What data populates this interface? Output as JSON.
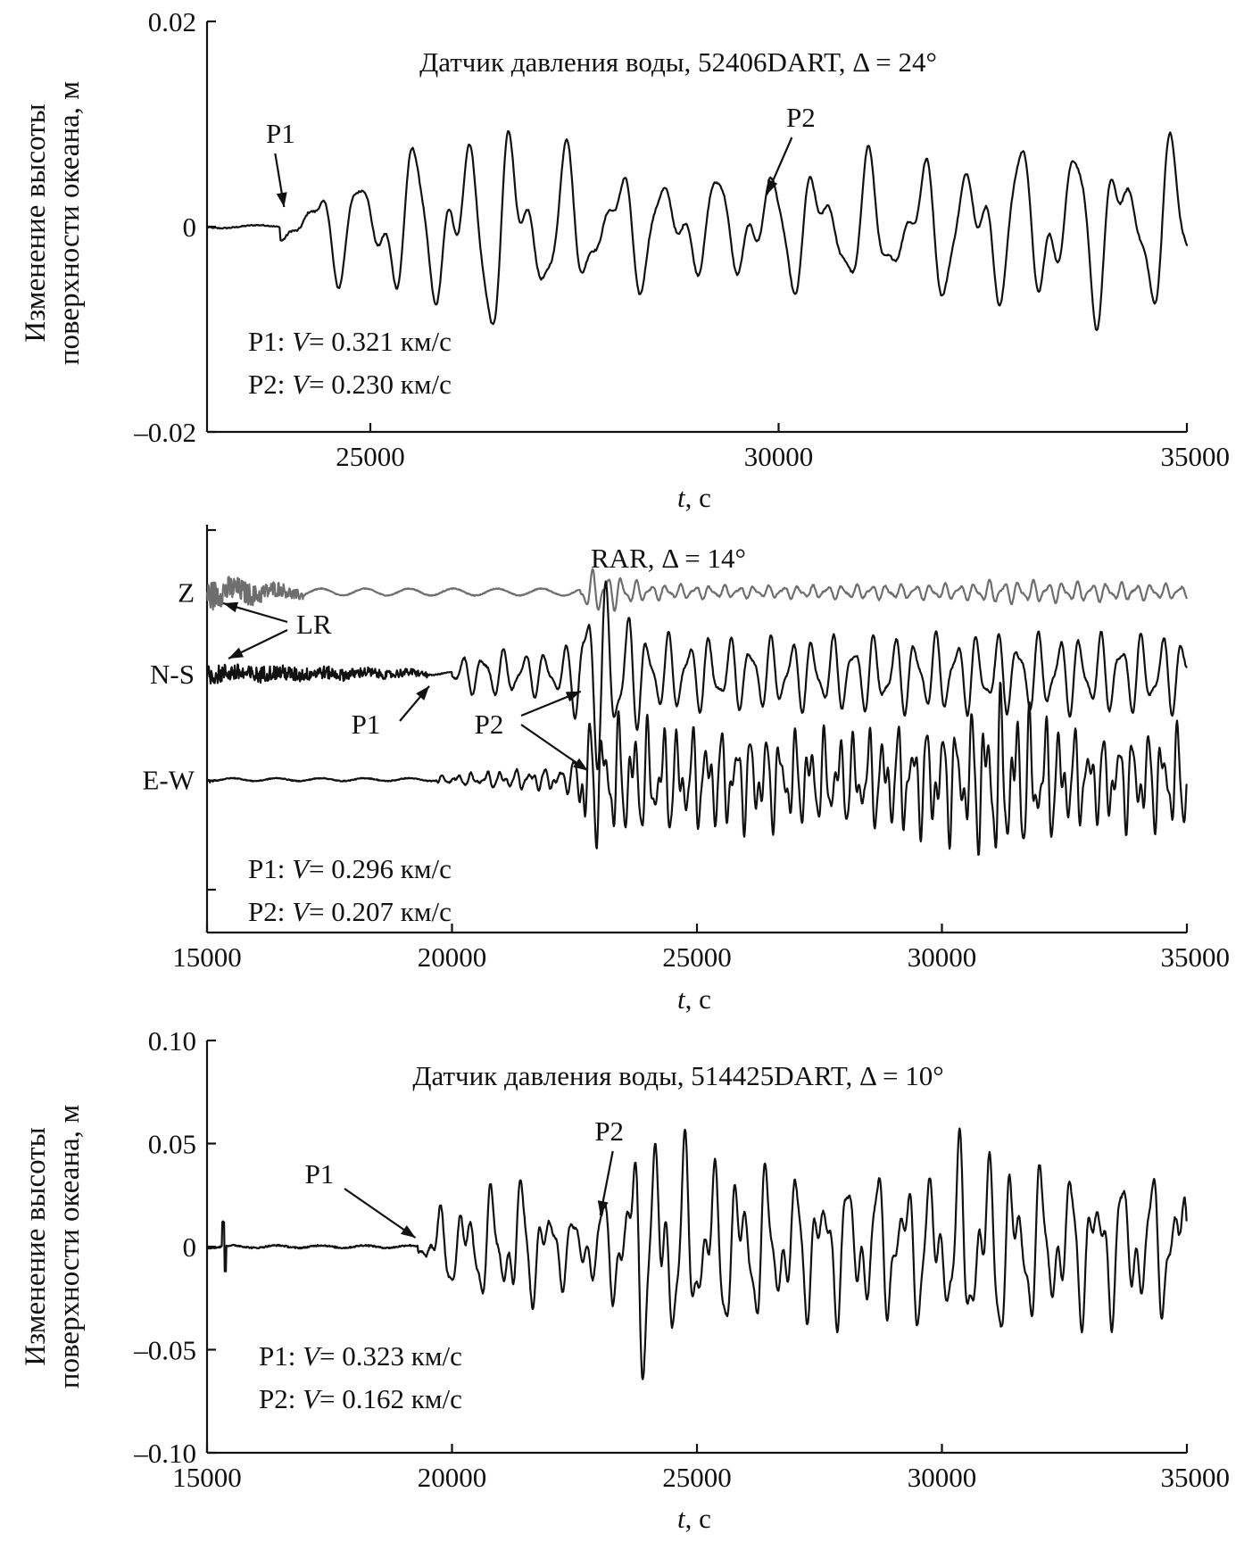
{
  "chart_data": [
    {
      "type": "line",
      "panel": "top",
      "title": "Датчик давления воды, 52406DART, Δ = 24°",
      "ylabel_line1": "Изменение высоты",
      "ylabel_line2": "поверхности  океана, м",
      "xlabel_italic": "t",
      "xlabel_rest": ", с",
      "xlim": [
        23000,
        35000
      ],
      "ylim": [
        -0.02,
        0.02
      ],
      "x_ticks": [
        25000,
        30000,
        35000
      ],
      "x_tick_labels": [
        "25000",
        "30000",
        "35000"
      ],
      "y_ticks": [
        0.02,
        0,
        -0.02
      ],
      "y_tick_labels": [
        "0.02",
        "0",
        "–0.02"
      ],
      "arrivals": [
        {
          "label": "P1",
          "t": 23900
        },
        {
          "label": "P2",
          "t": 29900
        }
      ],
      "velocity_lines": [
        {
          "phase": "P1: ",
          "var": "V",
          "value": "= 0.321 км/с"
        },
        {
          "phase": "P2: ",
          "var": "V",
          "value": "= 0.230 км/с"
        }
      ],
      "series": [
        {
          "color": "#111111",
          "onset": 23900,
          "quiet_amp": 0.00015,
          "noise": 0.0002,
          "envelope": [
            [
              23000,
              0.0002
            ],
            [
              23900,
              0.0012
            ],
            [
              24400,
              0.0035
            ],
            [
              25000,
              0.005
            ],
            [
              25800,
              0.007
            ],
            [
              26600,
              0.0085
            ],
            [
              27500,
              0.0055
            ],
            [
              29000,
              0.004
            ],
            [
              30500,
              0.0052
            ],
            [
              32000,
              0.0055
            ],
            [
              33500,
              0.0072
            ],
            [
              35000,
              0.0065
            ]
          ],
          "components": [
            [
              1.0,
              620,
              0.4
            ],
            [
              0.55,
              370,
              1.3
            ],
            [
              0.3,
              245,
              2.1
            ]
          ]
        }
      ]
    },
    {
      "type": "line",
      "panel": "middle",
      "title": "RAR, Δ = 14°",
      "xlabel_italic": "t",
      "xlabel_rest": ", с",
      "xlim": [
        15000,
        35000
      ],
      "x_ticks": [
        15000,
        20000,
        25000,
        30000,
        35000
      ],
      "x_tick_labels": [
        "15000",
        "20000",
        "25000",
        "30000",
        "35000"
      ],
      "lr_label": "LR",
      "arrivals": [
        {
          "label": "P1",
          "t": 19500
        },
        {
          "label": "P2",
          "t": 22300
        }
      ],
      "velocity_lines": [
        {
          "phase": "P1: ",
          "var": "V",
          "value": "= 0.296 км/с"
        },
        {
          "phase": "P2: ",
          "var": "V",
          "value": "= 0.207 км/с"
        }
      ],
      "series": [
        {
          "name": "Z",
          "color": "#6e6e6e",
          "baseline_frac": 0.165,
          "px_per_unit": 32,
          "onset": 22600,
          "quiet_amp": 0.12,
          "noise": 0.05,
          "burst": {
            "t0": 15000,
            "t1": 17000,
            "amp": 0.55
          },
          "envelope": [
            [
              15000,
              0.1
            ],
            [
              22400,
              0.12
            ],
            [
              22600,
              0.4
            ],
            [
              22900,
              0.55
            ],
            [
              23300,
              0.45
            ],
            [
              24000,
              0.2
            ],
            [
              26000,
              0.15
            ],
            [
              30500,
              0.2
            ],
            [
              31000,
              0.3
            ],
            [
              35000,
              0.18
            ]
          ],
          "components": [
            [
              1.0,
              300,
              0.2
            ],
            [
              0.5,
              180,
              1.1
            ]
          ]
        },
        {
          "name": "N-S",
          "color": "#111111",
          "baseline_frac": 0.365,
          "px_per_unit": 32,
          "onset": 20000,
          "quiet_amp": 0.05,
          "noise": 0.06,
          "burst": {
            "t0": 15000,
            "t1": 19500,
            "amp": 0.35
          },
          "envelope": [
            [
              15000,
              0.05
            ],
            [
              20000,
              0.2
            ],
            [
              20500,
              0.6
            ],
            [
              22000,
              0.55
            ],
            [
              22400,
              0.7
            ],
            [
              22800,
              2.6
            ],
            [
              23200,
              2.2
            ],
            [
              24000,
              1.0
            ],
            [
              26000,
              0.9
            ],
            [
              30000,
              1.0
            ],
            [
              35000,
              1.0
            ]
          ],
          "components": [
            [
              1.0,
              420,
              0.7
            ],
            [
              0.45,
              260,
              2.0
            ]
          ]
        },
        {
          "name": "E-W",
          "color": "#111111",
          "baseline_frac": 0.625,
          "px_per_unit": 32,
          "onset": 19700,
          "quiet_amp": 0.05,
          "noise": 0.05,
          "burst": {
            "t0": 15000,
            "t1": 15200,
            "amp": 0.05
          },
          "envelope": [
            [
              15000,
              0.05
            ],
            [
              19700,
              0.1
            ],
            [
              21000,
              0.25
            ],
            [
              22400,
              0.35
            ],
            [
              22700,
              1.8
            ],
            [
              23500,
              1.7
            ],
            [
              25000,
              1.4
            ],
            [
              28000,
              1.3
            ],
            [
              30500,
              1.7
            ],
            [
              31000,
              2.5
            ],
            [
              33000,
              1.2
            ],
            [
              35000,
              1.5
            ]
          ],
          "components": [
            [
              1.0,
              300,
              1.5
            ],
            [
              0.6,
              190,
              0.3
            ],
            [
              0.3,
              120,
              2.4
            ]
          ]
        }
      ]
    },
    {
      "type": "line",
      "panel": "bottom",
      "title": "Датчик давления воды, 514425DART, Δ = 10°",
      "ylabel_line1": "Изменение высоты",
      "ylabel_line2": "поверхности  океана, м",
      "xlabel_italic": "t",
      "xlabel_rest": ", с",
      "xlim": [
        15000,
        35000
      ],
      "ylim": [
        -0.1,
        0.1
      ],
      "x_ticks": [
        15000,
        20000,
        25000,
        30000,
        35000
      ],
      "x_tick_labels": [
        "15000",
        "20000",
        "25000",
        "30000",
        "35000"
      ],
      "y_ticks": [
        0.1,
        0.05,
        0,
        -0.05,
        -0.1
      ],
      "y_tick_labels": [
        "0.10",
        "0.05",
        "0",
        "–0.05",
        "–0.10"
      ],
      "arrivals": [
        {
          "label": "P1",
          "t": 19400
        },
        {
          "label": "P2",
          "t": 23100
        }
      ],
      "velocity_lines": [
        {
          "phase": "P1: ",
          "var": "V",
          "value": "= 0.323 км/с"
        },
        {
          "phase": "P2: ",
          "var": "V",
          "value": "= 0.162 км/с"
        }
      ],
      "series": [
        {
          "color": "#111111",
          "onset": 19300,
          "quiet_amp": 0.0006,
          "noise": 0.0012,
          "spike": {
            "t": 15350,
            "amp": 0.012
          },
          "envelope": [
            [
              15000,
              0.001
            ],
            [
              19300,
              0.004
            ],
            [
              19700,
              0.015
            ],
            [
              20500,
              0.02
            ],
            [
              21300,
              0.028
            ],
            [
              22500,
              0.012
            ],
            [
              23200,
              0.02
            ],
            [
              23700,
              0.045
            ],
            [
              24000,
              0.05
            ],
            [
              25000,
              0.035
            ],
            [
              27000,
              0.028
            ],
            [
              30000,
              0.03
            ],
            [
              30500,
              0.042
            ],
            [
              32000,
              0.03
            ],
            [
              35000,
              0.028
            ]
          ],
          "components": [
            [
              1.0,
              560,
              0.3
            ],
            [
              0.6,
              330,
              1.7
            ],
            [
              0.35,
              200,
              2.6
            ]
          ]
        }
      ]
    }
  ]
}
